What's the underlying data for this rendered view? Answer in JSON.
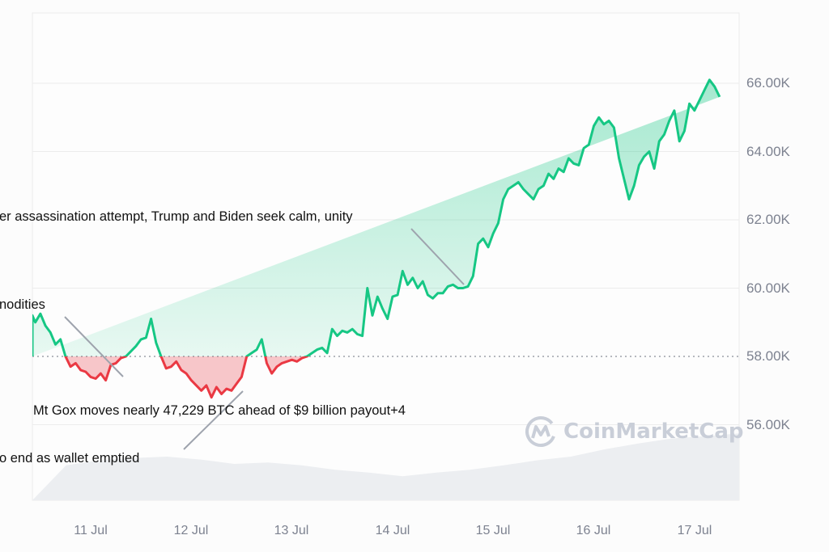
{
  "chart_data": {
    "type": "area",
    "title": "",
    "xlabel": "",
    "ylabel": "",
    "x_ticks": [
      "11 Jul",
      "12 Jul",
      "13 Jul",
      "14 Jul",
      "15 Jul",
      "16 Jul",
      "17 Jul"
    ],
    "y_ticks": [
      "56.00K",
      "58.00K",
      "60.00K",
      "62.00K",
      "64.00K",
      "66.00K"
    ],
    "ylim": [
      54000,
      67500
    ],
    "baseline": 58000,
    "grid": true,
    "legend": null,
    "colors": {
      "up": "#16c784",
      "down": "#ea3943",
      "up_fill": "#16c784",
      "down_fill": "#ea3943",
      "volume": "#eef0f3",
      "baseline": "#8a8f99"
    },
    "series": [
      {
        "name": "Price",
        "x_day": [
          10.35,
          10.4,
          10.45,
          10.5,
          10.55,
          10.6,
          10.65,
          10.7,
          10.75,
          10.8,
          10.85,
          10.9,
          10.95,
          11.0,
          11.05,
          11.1,
          11.15,
          11.2,
          11.25,
          11.3,
          11.35,
          11.4,
          11.45,
          11.5,
          11.55,
          11.6,
          11.65,
          11.7,
          11.75,
          11.8,
          11.85,
          11.9,
          11.95,
          12.0,
          12.05,
          12.1,
          12.15,
          12.2,
          12.25,
          12.3,
          12.35,
          12.4,
          12.45,
          12.5,
          12.55,
          12.6,
          12.65,
          12.7,
          12.75,
          12.8,
          12.85,
          12.9,
          12.95,
          13.0,
          13.05,
          13.1,
          13.15,
          13.2,
          13.25,
          13.3,
          13.35,
          13.4,
          13.45,
          13.5,
          13.55,
          13.6,
          13.65,
          13.7,
          13.75,
          13.8,
          13.85,
          13.9,
          13.95,
          14.0,
          14.05,
          14.1,
          14.15,
          14.2,
          14.25,
          14.3,
          14.35,
          14.4,
          14.45,
          14.5,
          14.55,
          14.6,
          14.65,
          14.7,
          14.75,
          14.8,
          14.85,
          14.9,
          14.95,
          15.0,
          15.05,
          15.1,
          15.15,
          15.2,
          15.25,
          15.3,
          15.35,
          15.4,
          15.45,
          15.5,
          15.55,
          15.6,
          15.65,
          15.7,
          15.75,
          15.8,
          15.85,
          15.9,
          15.95,
          16.0,
          16.05,
          16.1,
          16.15,
          16.2,
          16.25,
          16.3,
          16.35,
          16.4,
          16.45,
          16.5,
          16.55,
          16.6,
          16.65,
          16.7,
          16.75,
          16.8,
          16.85,
          16.9,
          16.95,
          17.0,
          17.05,
          17.1,
          17.15,
          17.2,
          17.25,
          17.3,
          17.35,
          17.4
        ],
        "values": [
          58000,
          59200,
          59000,
          59250,
          58900,
          58700,
          58350,
          58500,
          58000,
          57700,
          57800,
          57600,
          57550,
          57400,
          57350,
          57500,
          57300,
          57750,
          57800,
          57950,
          58000,
          58150,
          58300,
          58500,
          58550,
          59100,
          58400,
          58000,
          57650,
          57700,
          57850,
          57600,
          57500,
          57300,
          57150,
          57000,
          57150,
          56800,
          57100,
          56900,
          57050,
          57000,
          57200,
          57400,
          58000,
          58100,
          58200,
          58500,
          57800,
          57500,
          57700,
          57800,
          57850,
          57900,
          57850,
          57950,
          58000,
          58100,
          58200,
          58250,
          58100,
          58800,
          58600,
          58750,
          58700,
          58800,
          58650,
          58600,
          60000,
          59200,
          59750,
          59400,
          59100,
          59750,
          59800,
          60500,
          60100,
          60300,
          60000,
          60200,
          59800,
          59700,
          59850,
          59850,
          60050,
          60100,
          60000,
          60000,
          60050,
          60350,
          61300,
          61450,
          61200,
          61600,
          61900,
          62600,
          62900,
          63000,
          63100,
          62900,
          62750,
          62600,
          62900,
          63000,
          63350,
          63200,
          63500,
          63400,
          63800,
          63650,
          63600,
          64100,
          64200,
          64750,
          65000,
          64800,
          64900,
          64700,
          63800,
          63200,
          62600,
          63000,
          63600,
          63850,
          64000,
          63500,
          64300,
          64500,
          64900,
          65200,
          64300,
          64600,
          65400,
          65200,
          65500,
          65800,
          66100,
          65900,
          65600
        ]
      },
      {
        "name": "Volume",
        "note": "grey area along bottom, relative scale",
        "values_relative": [
          0,
          0.48,
          0.55,
          0.58,
          0.6,
          0.56,
          0.5,
          0.52,
          0.48,
          0.42,
          0.38,
          0.33,
          0.38,
          0.42,
          0.48,
          0.55,
          0.6,
          0.7,
          0.78,
          0.85,
          0.88,
          0.92
        ]
      }
    ],
    "annotations": [
      {
        "text": "er assassination attempt, Trump and Biden seek calm, unity",
        "points_to": "15 Jul ~60.3K"
      },
      {
        "text": "nodities",
        "points_to": "11 Jul ~57.4K"
      },
      {
        "text": "Mt Gox moves nearly 47,229 BTC ahead of $9 billion payout+4",
        "points_to": "12 Jul ~56.9K"
      },
      {
        "text": "o end as wallet emptied",
        "points_to": "12 Jul ~56.9K"
      }
    ],
    "watermark": "CoinMarketCap"
  },
  "labels": {
    "y": [
      "66.00K",
      "64.00K",
      "62.00K",
      "60.00K",
      "58.00K",
      "56.00K"
    ],
    "x": [
      "11 Jul",
      "12 Jul",
      "13 Jul",
      "14 Jul",
      "15 Jul",
      "16 Jul",
      "17 Jul"
    ],
    "annotations": [
      "er assassination attempt, Trump and Biden seek calm, unity",
      "nodities",
      "Mt Gox moves nearly 47,229 BTC ahead of $9 billion payout+4",
      "o end as wallet emptied"
    ],
    "watermark": "CoinMarketCap"
  }
}
